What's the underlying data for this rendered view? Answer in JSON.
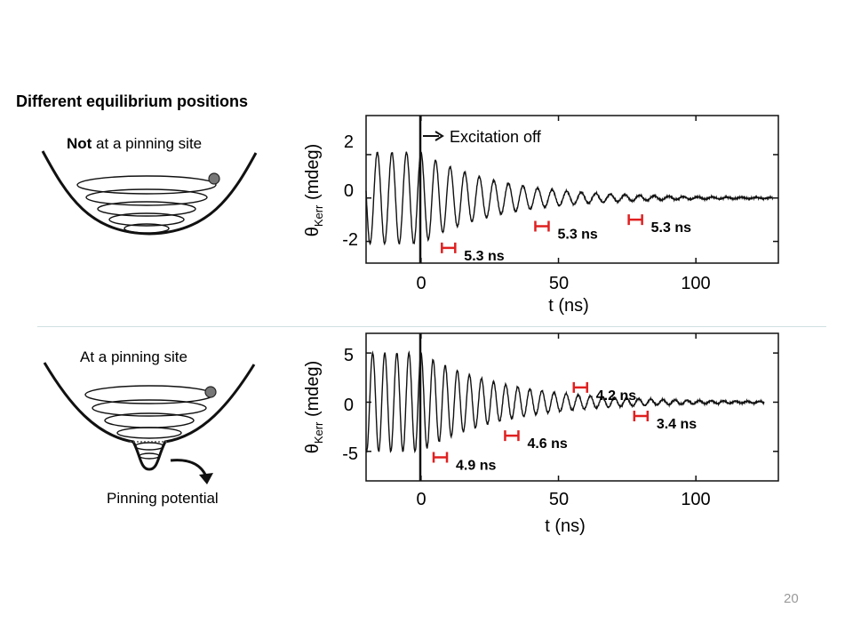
{
  "slide": {
    "title": "Different equilibrium positions",
    "top_label_bold": "Not",
    "top_label_rest": " at a pinning site",
    "bottom_label": "At a pinning site",
    "pinning_label": "Pinning potential",
    "page_number": "20"
  },
  "colors": {
    "marker": "#e02020",
    "trace": "#111111",
    "divider": "#cfe0e2"
  },
  "chart_data": [
    {
      "type": "line",
      "xlabel": "t (ns)",
      "ylabel_theta": "θ",
      "ylabel_sub": "Kerr",
      "ylabel_unit": " (mdeg)",
      "xlim": [
        -20,
        130
      ],
      "ylim": [
        -3,
        3.8
      ],
      "xticks": [
        "0",
        "50",
        "100"
      ],
      "yticks": [
        "2",
        "0",
        "-2"
      ],
      "excitation_off_x": 0,
      "excitation_label": "Excitation off",
      "signal": {
        "amplitude": 2.1,
        "period_ns": 5.3,
        "decay_ns": 28,
        "end_ns": 128
      },
      "annotations": [
        {
          "t": 10,
          "y": -2.3,
          "text": "5.3 ns"
        },
        {
          "t": 44,
          "y": -1.3,
          "text": "5.3 ns"
        },
        {
          "t": 78,
          "y": -1.0,
          "text": "5.3 ns"
        }
      ]
    },
    {
      "type": "line",
      "xlabel": "t (ns)",
      "ylabel_theta": "θ",
      "ylabel_sub": "Kerr",
      "ylabel_unit": " (mdeg)",
      "xlim": [
        -20,
        130
      ],
      "ylim": [
        -8,
        7
      ],
      "xticks": [
        "0",
        "50",
        "100"
      ],
      "yticks": [
        "5",
        "0",
        "-5"
      ],
      "excitation_off_x": 0,
      "signal": {
        "amplitude": 5.0,
        "period_ns": 4.4,
        "decay_ns": 30,
        "end_ns": 125
      },
      "annotations": [
        {
          "t": 7,
          "y": -5.6,
          "text": "4.9 ns"
        },
        {
          "t": 33,
          "y": -3.4,
          "text": "4.6 ns"
        },
        {
          "t": 58,
          "y": 1.5,
          "text": "4.2 ns"
        },
        {
          "t": 80,
          "y": -1.4,
          "text": "3.4 ns"
        }
      ]
    }
  ]
}
